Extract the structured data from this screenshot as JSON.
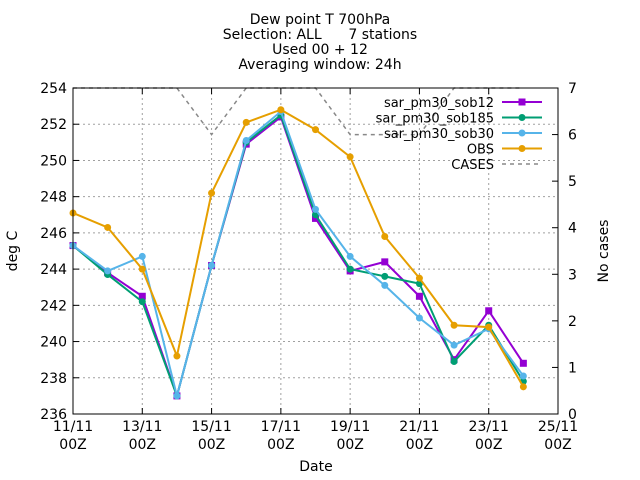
{
  "chart_data": {
    "type": "line",
    "title_lines": [
      "Dew point T 700hPa",
      "Selection: ALL      7 stations",
      "Used 00 + 12",
      "Averaging window: 24h"
    ],
    "xlabel": "Date",
    "ylabel": "deg C",
    "y2label": "No cases",
    "xlim": [
      0,
      14
    ],
    "ylim": [
      236,
      254
    ],
    "y2lim": [
      0,
      7
    ],
    "x_ticks": [
      {
        "x": 0,
        "top": "11/11",
        "bottom": "00Z"
      },
      {
        "x": 2,
        "top": "13/11",
        "bottom": "00Z"
      },
      {
        "x": 4,
        "top": "15/11",
        "bottom": "00Z"
      },
      {
        "x": 6,
        "top": "17/11",
        "bottom": "00Z"
      },
      {
        "x": 8,
        "top": "19/11",
        "bottom": "00Z"
      },
      {
        "x": 10,
        "top": "21/11",
        "bottom": "00Z"
      },
      {
        "x": 12,
        "top": "23/11",
        "bottom": "00Z"
      },
      {
        "x": 14,
        "top": "25/11",
        "bottom": "00Z"
      }
    ],
    "y_ticks": [
      236,
      238,
      240,
      242,
      244,
      246,
      248,
      250,
      252,
      254
    ],
    "y2_ticks": [
      0,
      1,
      2,
      3,
      4,
      5,
      6,
      7
    ],
    "grid": true,
    "legend_position": "top-right",
    "series": [
      {
        "name": "sar_pm30_sob12",
        "color": "#9400d3",
        "marker": "square",
        "x": [
          0,
          1,
          2,
          3,
          4,
          5,
          6,
          7,
          8,
          9,
          10,
          11,
          12,
          13
        ],
        "values": [
          245.3,
          243.8,
          242.5,
          237.0,
          244.2,
          250.9,
          252.4,
          246.8,
          243.9,
          244.4,
          242.5,
          239.0,
          241.7,
          238.8
        ]
      },
      {
        "name": "sar_pm30_sob185",
        "color": "#009e73",
        "marker": "circle",
        "x": [
          0,
          1,
          2,
          3,
          4,
          5,
          6,
          7,
          8,
          9,
          10,
          11,
          12,
          13
        ],
        "values": [
          245.3,
          243.7,
          242.2,
          237.0,
          244.2,
          251.0,
          252.5,
          247.0,
          244.0,
          243.6,
          243.2,
          238.9,
          240.9,
          237.8
        ]
      },
      {
        "name": "sar_pm30_sob30",
        "color": "#56b4e9",
        "marker": "circle",
        "x": [
          0,
          1,
          2,
          3,
          4,
          5,
          6,
          7,
          8,
          9,
          10,
          11,
          12,
          13
        ],
        "values": [
          245.3,
          243.9,
          244.7,
          237.0,
          244.2,
          251.1,
          252.7,
          247.3,
          244.7,
          243.1,
          241.3,
          239.8,
          240.7,
          238.1
        ]
      },
      {
        "name": "OBS",
        "color": "#e69f00",
        "marker": "circle",
        "x": [
          0,
          1,
          2,
          3,
          4,
          5,
          6,
          7,
          8,
          9,
          10,
          11,
          12,
          13
        ],
        "values": [
          247.1,
          246.3,
          244.0,
          239.2,
          248.2,
          252.1,
          252.8,
          251.7,
          250.2,
          245.8,
          243.5,
          240.9,
          240.8,
          237.5
        ]
      },
      {
        "name": "CASES",
        "color": "#888888",
        "axis": "y2",
        "dashed": true,
        "x": [
          0,
          1,
          2,
          3,
          4,
          5,
          6,
          7,
          8,
          9,
          10,
          11,
          12,
          13
        ],
        "values": [
          7,
          7,
          7,
          7,
          6,
          7,
          7,
          7,
          6,
          6,
          6,
          7,
          7,
          7
        ]
      }
    ]
  }
}
